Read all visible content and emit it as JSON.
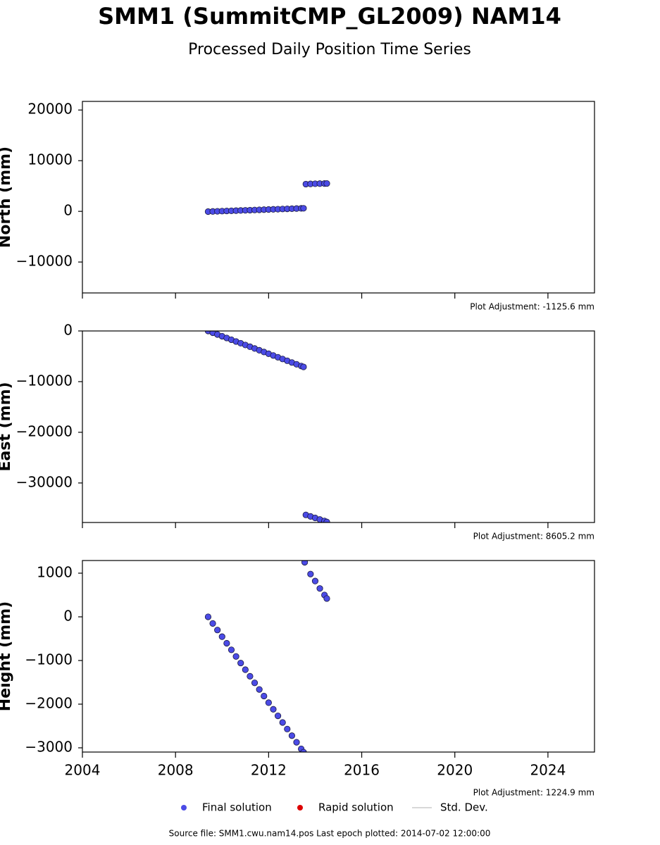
{
  "title": "SMM1 (SummitCMP_GL2009) NAM14",
  "subtitle": "Processed Daily Position Time Series",
  "legend": [
    {
      "name": "Final solution",
      "color": "#4b4be6",
      "kind": "marker"
    },
    {
      "name": "Rapid solution",
      "color": "#dd0000",
      "kind": "marker"
    },
    {
      "name": "Std. Dev.",
      "color": "#cccccc",
      "kind": "line"
    }
  ],
  "source": "Source file: SMM1.cwu.nam14.pos  Last epoch plotted: 2014-07-02 12:00:00",
  "chart_data": [
    {
      "type": "scatter",
      "ylabel": "North (mm)",
      "adjustment": "Plot Adjustment: -1125.6 mm",
      "xlim": [
        2004,
        2026
      ],
      "xticks": [
        2004,
        2008,
        2012,
        2016,
        2020,
        2024
      ],
      "xtick_labels": false,
      "ylim": [
        -16100,
        21700
      ],
      "yticks": [
        {
          "value": -10000,
          "label": "−10000"
        },
        0,
        10000,
        20000
      ],
      "series": [
        {
          "name": "Final solution",
          "color": "#4b4be6",
          "x": [
            2009.4,
            2009.6,
            2009.8,
            2010.0,
            2010.2,
            2010.4,
            2010.6,
            2010.8,
            2011.0,
            2011.2,
            2011.4,
            2011.6,
            2011.8,
            2012.0,
            2012.2,
            2012.4,
            2012.6,
            2012.8,
            2013.0,
            2013.2,
            2013.4,
            2013.5,
            2013.6,
            2013.8,
            2014.0,
            2014.2,
            2014.4,
            2014.5
          ],
          "values": [
            -50,
            -18,
            14,
            46,
            78,
            110,
            142,
            174,
            206,
            238,
            270,
            302,
            334,
            366,
            398,
            430,
            462,
            494,
            526,
            558,
            590,
            606,
            5380,
            5420,
            5450,
            5470,
            5490,
            5500
          ]
        }
      ]
    },
    {
      "type": "scatter",
      "ylabel": "East (mm)",
      "adjustment": "Plot Adjustment: 8605.2 mm",
      "xlim": [
        2004,
        2026
      ],
      "xticks": [
        2004,
        2008,
        2012,
        2016,
        2020,
        2024
      ],
      "xtick_labels": false,
      "ylim": [
        -37800,
        0
      ],
      "yticks": [
        {
          "value": -30000,
          "label": "−30000"
        },
        {
          "value": -20000,
          "label": "−20000"
        },
        {
          "value": -10000,
          "label": "−10000"
        },
        0
      ],
      "series": [
        {
          "name": "Final solution",
          "color": "#4b4be6",
          "x": [
            2009.4,
            2009.6,
            2009.8,
            2010.0,
            2010.2,
            2010.4,
            2010.6,
            2010.8,
            2011.0,
            2011.2,
            2011.4,
            2011.6,
            2011.8,
            2012.0,
            2012.2,
            2012.4,
            2012.6,
            2012.8,
            2013.0,
            2013.2,
            2013.4,
            2013.5,
            2013.6,
            2013.8,
            2014.0,
            2014.2,
            2014.4,
            2014.5
          ],
          "values": [
            0,
            -346,
            -692,
            -1038,
            -1384,
            -1730,
            -2076,
            -2422,
            -2768,
            -3114,
            -3460,
            -3806,
            -4152,
            -4498,
            -4844,
            -5190,
            -5536,
            -5882,
            -6228,
            -6574,
            -6920,
            -7093,
            -36300,
            -36600,
            -36900,
            -37200,
            -37500,
            -37700
          ]
        }
      ]
    },
    {
      "type": "scatter",
      "ylabel": "Height (mm)",
      "adjustment": "Plot Adjustment: 1224.9 mm",
      "xlim": [
        2004,
        2026
      ],
      "xticks": [
        2004,
        2008,
        2012,
        2016,
        2020,
        2024
      ],
      "xtick_labels": true,
      "ylim": [
        -3097,
        1290
      ],
      "yticks": [
        {
          "value": -3000,
          "label": "−3000"
        },
        {
          "value": -2000,
          "label": "−2000"
        },
        {
          "value": -1000,
          "label": "−1000"
        },
        0,
        1000
      ],
      "series": [
        {
          "name": "Final solution",
          "color": "#4b4be6",
          "x": [
            2009.4,
            2009.6,
            2009.8,
            2010.0,
            2010.2,
            2010.4,
            2010.6,
            2010.8,
            2011.0,
            2011.2,
            2011.4,
            2011.6,
            2011.8,
            2012.0,
            2012.2,
            2012.4,
            2012.6,
            2012.8,
            2013.0,
            2013.2,
            2013.4,
            2013.5,
            2013.55,
            2013.8,
            2014.0,
            2014.2,
            2014.4,
            2014.5
          ],
          "values": [
            0,
            -151,
            -302,
            -454,
            -605,
            -756,
            -907,
            -1058,
            -1210,
            -1361,
            -1512,
            -1663,
            -1814,
            -1966,
            -2117,
            -2268,
            -2419,
            -2570,
            -2722,
            -2873,
            -3024,
            -3100,
            1250,
            980,
            820,
            650,
            500,
            420
          ]
        }
      ]
    }
  ]
}
